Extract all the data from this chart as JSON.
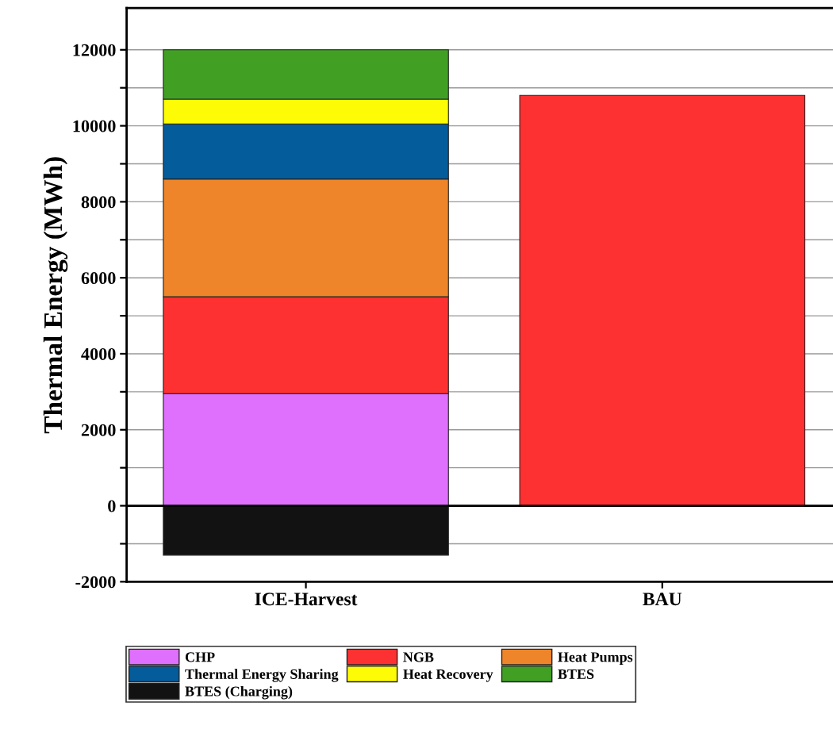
{
  "chart_data": {
    "type": "bar",
    "stacked": true,
    "ylabel": "Thermal Energy (MWh)",
    "categories": [
      "ICE-Harvest",
      "BAU"
    ],
    "series": [
      {
        "name": "CHP",
        "color": "#df6ffd",
        "values": [
          2950,
          null
        ]
      },
      {
        "name": "NGB",
        "color": "#fd3131",
        "values": [
          2550,
          10800
        ]
      },
      {
        "name": "Heat Pumps",
        "color": "#ee852a",
        "values": [
          3100,
          null
        ]
      },
      {
        "name": "Thermal Energy Sharing",
        "color": "#045c9b",
        "values": [
          1450,
          null
        ]
      },
      {
        "name": "Heat Recovery",
        "color": "#fdfb05",
        "values": [
          650,
          null
        ]
      },
      {
        "name": "BTES",
        "color": "#41a024",
        "values": [
          1300,
          null
        ]
      },
      {
        "name": "BTES (Charging)",
        "color": "#121212",
        "values": [
          -1300,
          null
        ]
      }
    ],
    "ylim": [
      -2000,
      13100
    ],
    "yticks": [
      -2000,
      {
        "value": -1000,
        "label": null
      },
      0,
      {
        "value": 1000,
        "label": null
      },
      2000,
      {
        "value": 3000,
        "label": null
      },
      4000,
      {
        "value": 5000,
        "label": null
      },
      6000,
      {
        "value": 7000,
        "label": null
      },
      8000,
      {
        "value": 9000,
        "label": null
      },
      10000,
      {
        "value": 11000,
        "label": null
      },
      12000
    ],
    "ref_lines": [
      {
        "axis": "y",
        "value": 0,
        "color": "#000000"
      }
    ],
    "grid": "y",
    "legend": "bottom"
  }
}
